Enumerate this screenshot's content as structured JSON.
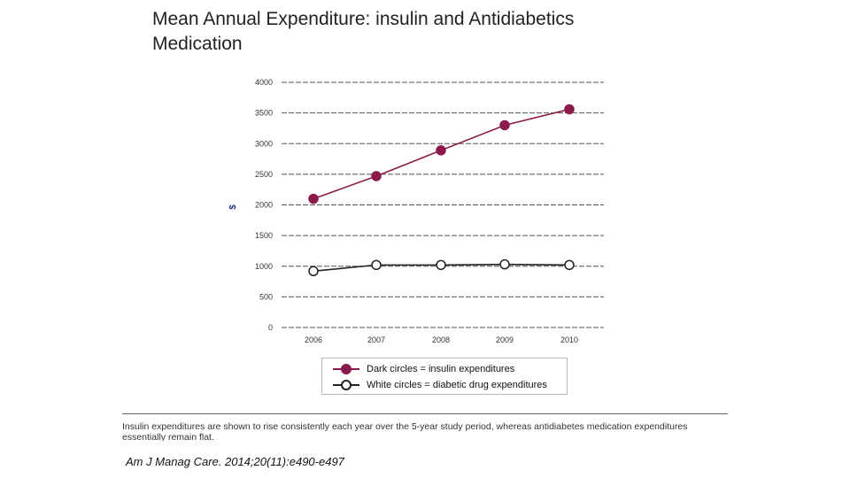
{
  "slide_title": "Mean Annual Expenditure: insulin and Antidiabetics Medication",
  "chart_data": {
    "type": "line",
    "categories": [
      "2006",
      "2007",
      "2008",
      "2009",
      "2010"
    ],
    "series": [
      {
        "name": "Dark circles = insulin expenditures",
        "values": [
          2100,
          2470,
          2890,
          3300,
          3560
        ],
        "color": "#8b1a4a",
        "marker": "filled"
      },
      {
        "name": "White circles = diabetic drug expenditures",
        "values": [
          920,
          1020,
          1020,
          1030,
          1020
        ],
        "color": "#222222",
        "marker": "hollow"
      }
    ],
    "ylabel": "$",
    "ylim": [
      0,
      4000
    ],
    "yticks": [
      "0",
      "500",
      "1000",
      "1500",
      "2000",
      "2500",
      "3000",
      "3500",
      "4000"
    ],
    "grid": true,
    "legend_position": "bottom"
  },
  "caption": "Insulin expenditures are shown to rise consistently each year over the 5-year study period, whereas antidiabetes medication expenditures essentially remain flat.",
  "citation": "Am J Manag Care. 2014;20(11):e490-e497"
}
